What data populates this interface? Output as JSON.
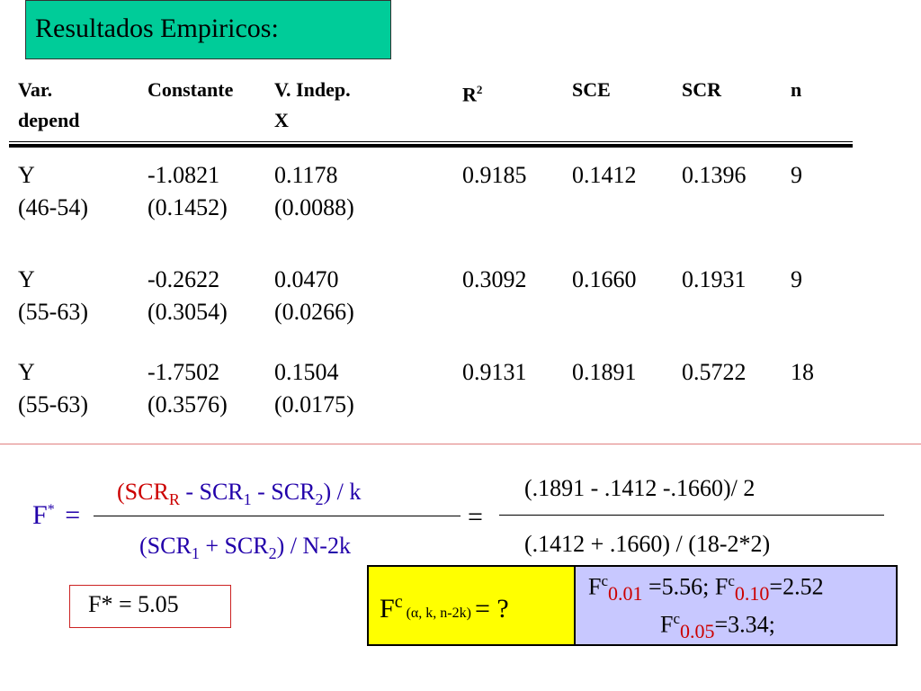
{
  "title": "Resultados Empiricos:",
  "headers": {
    "var_line1": "Var.",
    "var_line2": "depend",
    "constante": "Constante",
    "vindep_line1": "V. Indep.",
    "vindep_line2": "X",
    "r2": "R",
    "r2_sup": "2",
    "sce": "SCE",
    "scr": "SCR",
    "n": "n"
  },
  "rows": [
    {
      "var": "Y",
      "var_range": "(46-54)",
      "const": "-1.0821",
      "const_se": "(0.1452)",
      "x": "0.1178",
      "x_se": "(0.0088)",
      "r2": "0.9185",
      "sce": "0.1412",
      "scr": "0.1396",
      "n": "9"
    },
    {
      "var": "Y",
      "var_range": "(55-63)",
      "const": "-0.2622",
      "const_se": "(0.3054)",
      "x": "0.0470",
      "x_se": "(0.0266)",
      "r2": "0.3092",
      "sce": "0.1660",
      "scr": "0.1931",
      "n": "9"
    },
    {
      "var": "Y",
      "var_range": "(55-63)",
      "const": "-1.7502",
      "const_se": "(0.3576)",
      "x": "0.1504",
      "x_se": "(0.0175)",
      "r2": "0.9131",
      "sce": "0.1891",
      "scr": "0.5722",
      "n": "18"
    }
  ],
  "formula": {
    "lhs": "F",
    "lhs_sup": "*",
    "equals": "=",
    "num_a": "(SCR",
    "num_a_sub": "R",
    "num_b": " - SCR",
    "num_b_sub": "1",
    "num_c": " - SCR",
    "num_c_sub": "2",
    "num_d": ") / k",
    "den_a": "(SCR",
    "den_a_sub": "1",
    "den_b": " + SCR",
    "den_b_sub": "2",
    "den_c": ") / N-2k",
    "equals2": "=",
    "num_values": "(.1891 - .1412 -.1660)/ 2",
    "den_values": "(.1412 + .1660) / (18-2*2)"
  },
  "fstar_result": "F* = 5.05",
  "fc_question": {
    "f": "F",
    "sup": "c",
    "args": " (α, k, n-2k) ",
    "rest": " = ?"
  },
  "fc_values": {
    "line1_f1": "F",
    "line1_sup1": "c",
    "line1_sub1": "0.01",
    "line1_val1": " =5.56;  ",
    "line1_f2": "F",
    "line1_sup2": "c",
    "line1_sub2": "0.10",
    "line1_val2": "=2.52",
    "line2_f": "F",
    "line2_sup": "c",
    "line2_sub": "0.05",
    "line2_val": "=3.34;"
  },
  "colors": {
    "title_bg": "#00cc99",
    "fc_yellow": "#ffff00",
    "fc_blue": "#c8c8ff",
    "red": "#cc0000",
    "formula_text": "#2200aa"
  }
}
